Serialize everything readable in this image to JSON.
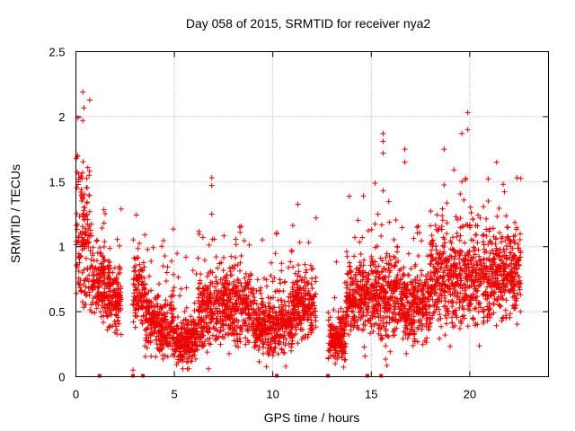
{
  "chart_data": {
    "type": "scatter",
    "title": "Day 058 of 2015, SRMTID for receiver nya2",
    "xlabel": "GPS time / hours",
    "ylabel": "SRMTID / TECUs",
    "xlim": [
      0,
      24
    ],
    "ylim": [
      0,
      2.5
    ],
    "grid": true,
    "x_ticks": [
      0,
      5,
      10,
      15,
      20
    ],
    "x_tick_labels": [
      "0",
      "5",
      "10",
      "15",
      "20"
    ],
    "y_ticks": [
      0,
      0.5,
      1,
      1.5,
      2,
      2.5
    ],
    "y_tick_labels": [
      "0",
      "0.5",
      "1",
      "1.5",
      "2",
      "2.5"
    ],
    "marker": "+",
    "color": "#ee0000",
    "segments": [
      {
        "start": 0.0,
        "end": 0.35,
        "base": 1.1,
        "spread": 0.55
      },
      {
        "start": 0.35,
        "end": 0.8,
        "base": 1.0,
        "spread": 0.6
      },
      {
        "start": 0.8,
        "end": 1.5,
        "base": 0.7,
        "spread": 0.3
      },
      {
        "start": 1.5,
        "end": 2.3,
        "base": 0.6,
        "spread": 0.25
      },
      {
        "start": 2.9,
        "end": 3.5,
        "base": 0.65,
        "spread": 0.25
      },
      {
        "start": 3.5,
        "end": 4.2,
        "base": 0.45,
        "spread": 0.25
      },
      {
        "start": 4.2,
        "end": 5.0,
        "base": 0.38,
        "spread": 0.25
      },
      {
        "start": 5.0,
        "end": 6.2,
        "base": 0.28,
        "spread": 0.2
      },
      {
        "start": 6.2,
        "end": 7.5,
        "base": 0.5,
        "spread": 0.3
      },
      {
        "start": 7.5,
        "end": 9.0,
        "base": 0.55,
        "spread": 0.3
      },
      {
        "start": 9.0,
        "end": 10.0,
        "base": 0.4,
        "spread": 0.25
      },
      {
        "start": 10.0,
        "end": 11.0,
        "base": 0.4,
        "spread": 0.25
      },
      {
        "start": 11.0,
        "end": 12.2,
        "base": 0.55,
        "spread": 0.25
      },
      {
        "start": 12.8,
        "end": 13.7,
        "base": 0.3,
        "spread": 0.2
      },
      {
        "start": 13.7,
        "end": 15.3,
        "base": 0.65,
        "spread": 0.35
      },
      {
        "start": 15.3,
        "end": 16.5,
        "base": 0.6,
        "spread": 0.35
      },
      {
        "start": 16.5,
        "end": 18.0,
        "base": 0.55,
        "spread": 0.3
      },
      {
        "start": 18.0,
        "end": 19.5,
        "base": 0.75,
        "spread": 0.4
      },
      {
        "start": 19.5,
        "end": 21.0,
        "base": 0.75,
        "spread": 0.4
      },
      {
        "start": 21.0,
        "end": 22.6,
        "base": 0.8,
        "spread": 0.35
      }
    ],
    "outliers": [
      {
        "x": 0.35,
        "y": 2.19
      },
      {
        "x": 0.1,
        "y": 1.99
      },
      {
        "x": 0.35,
        "y": 1.97
      },
      {
        "x": 2.3,
        "y": 1.29
      },
      {
        "x": 3.5,
        "y": 1.09
      },
      {
        "x": 6.9,
        "y": 1.53
      },
      {
        "x": 6.9,
        "y": 1.47
      },
      {
        "x": 6.9,
        "y": 1.25
      },
      {
        "x": 15.6,
        "y": 1.87
      },
      {
        "x": 15.6,
        "y": 1.81
      },
      {
        "x": 15.6,
        "y": 1.72
      },
      {
        "x": 15.6,
        "y": 1.43
      },
      {
        "x": 16.7,
        "y": 1.75
      },
      {
        "x": 16.7,
        "y": 1.65
      },
      {
        "x": 18.7,
        "y": 1.75
      },
      {
        "x": 19.2,
        "y": 1.59
      },
      {
        "x": 19.9,
        "y": 2.03
      },
      {
        "x": 19.9,
        "y": 1.9
      },
      {
        "x": 19.6,
        "y": 1.87
      },
      {
        "x": 19.6,
        "y": 1.5
      },
      {
        "x": 22.4,
        "y": 1.53
      },
      {
        "x": 2.9,
        "y": 0.05
      },
      {
        "x": 14.6,
        "y": 1.39
      },
      {
        "x": 21.7,
        "y": 1.48
      }
    ],
    "zero_markers": [
      1.2,
      2.9,
      3.4,
      10.2,
      12.8,
      14.8,
      15.5
    ]
  }
}
